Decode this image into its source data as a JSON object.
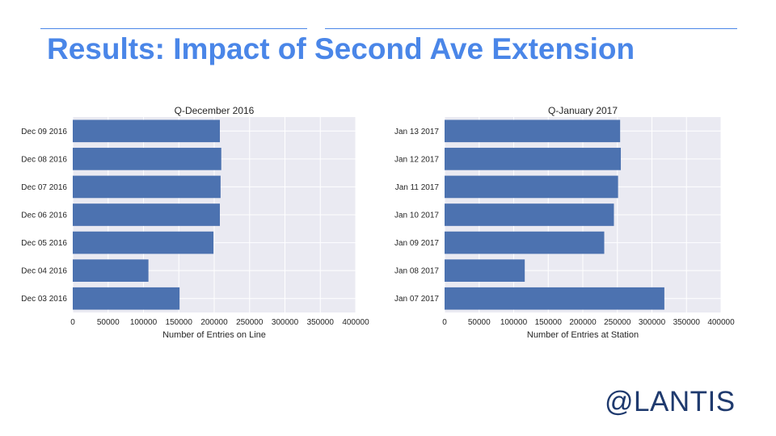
{
  "slide": {
    "title": "Results: Impact of Second Ave Extension",
    "logo_text": "@LANTIS"
  },
  "colors": {
    "bar": "#4c72b0",
    "plot_bg": "#eaeaf2",
    "grid": "#ffffff",
    "title": "#4a86e8",
    "logo": "#1f3a6e"
  },
  "chart_data": [
    {
      "type": "bar",
      "orientation": "horizontal",
      "title": "Q-December 2016",
      "xlabel": "Number of Entries on Line",
      "ylabel": "",
      "xlim": [
        0,
        400000
      ],
      "xticks": [
        0,
        50000,
        100000,
        150000,
        200000,
        250000,
        300000,
        350000,
        400000
      ],
      "grid": true,
      "categories": [
        "Dec 09 2016",
        "Dec 08 2016",
        "Dec 07 2016",
        "Dec 06 2016",
        "Dec 05 2016",
        "Dec 04 2016",
        "Dec 03 2016"
      ],
      "values": [
        208000,
        210000,
        209000,
        208000,
        199000,
        107000,
        151000
      ]
    },
    {
      "type": "bar",
      "orientation": "horizontal",
      "title": "Q-January 2017",
      "xlabel": "Number of Entries at Station",
      "ylabel": "",
      "xlim": [
        0,
        400000
      ],
      "xticks": [
        0,
        50000,
        100000,
        150000,
        200000,
        250000,
        300000,
        350000,
        400000
      ],
      "grid": true,
      "categories": [
        "Jan 13 2017",
        "Jan 12 2017",
        "Jan 11 2017",
        "Jan 10 2017",
        "Jan 09 2017",
        "Jan 08 2017",
        "Jan 07 2017"
      ],
      "values": [
        254000,
        255000,
        251000,
        245000,
        231000,
        116000,
        318000
      ]
    }
  ]
}
